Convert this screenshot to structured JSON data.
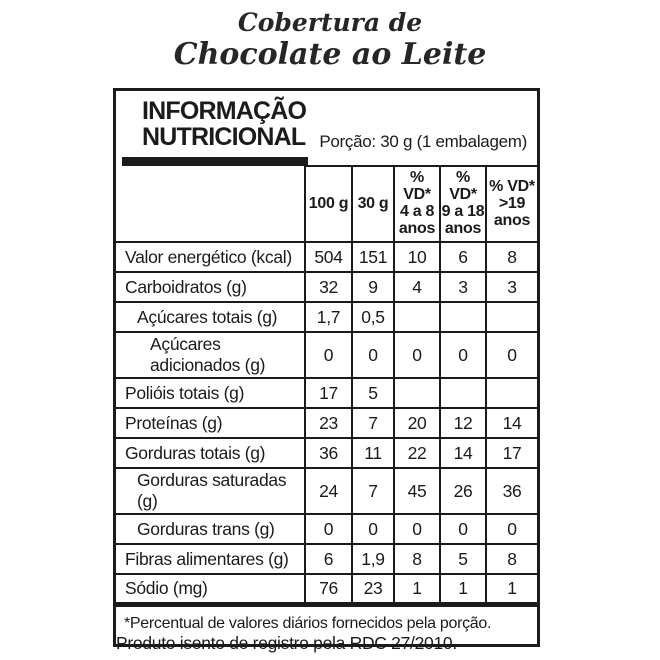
{
  "product": {
    "title_line1": "Cobertura de",
    "title_line2": "Chocolate ao Leite"
  },
  "label": {
    "heading": "INFORMAÇÃO\nNUTRICIONAL",
    "portion": "Porção: 30 g (1 embalagem)",
    "columns": [
      "100 g",
      "30 g",
      "% VD*\n4 a 8\nanos",
      "% VD*\n9 a 18\nanos",
      "% VD*\n>19\nanos"
    ],
    "rows": [
      {
        "label": "Valor energético (kcal)",
        "indent": 0,
        "values": [
          "504",
          "151",
          "10",
          "6",
          "8"
        ]
      },
      {
        "label": "Carboidratos (g)",
        "indent": 0,
        "values": [
          "32",
          "9",
          "4",
          "3",
          "3"
        ]
      },
      {
        "label": "Açúcares totais (g)",
        "indent": 1,
        "values": [
          "1,7",
          "0,5",
          "",
          "",
          ""
        ]
      },
      {
        "label": "Açúcares adicionados (g)",
        "indent": 2,
        "values": [
          "0",
          "0",
          "0",
          "0",
          "0"
        ]
      },
      {
        "label": "Polióis totais (g)",
        "indent": 0,
        "values": [
          "17",
          "5",
          "",
          "",
          ""
        ]
      },
      {
        "label": "Proteínas (g)",
        "indent": 0,
        "values": [
          "23",
          "7",
          "20",
          "12",
          "14"
        ]
      },
      {
        "label": "Gorduras totais (g)",
        "indent": 0,
        "values": [
          "36",
          "11",
          "22",
          "14",
          "17"
        ]
      },
      {
        "label": "Gorduras saturadas (g)",
        "indent": 1,
        "values": [
          "24",
          "7",
          "45",
          "26",
          "36"
        ]
      },
      {
        "label": "Gorduras trans (g)",
        "indent": 1,
        "values": [
          "0",
          "0",
          "0",
          "0",
          "0"
        ]
      },
      {
        "label": "Fibras alimentares (g)",
        "indent": 0,
        "values": [
          "6",
          "1,9",
          "8",
          "5",
          "8"
        ]
      },
      {
        "label": "Sódio (mg)",
        "indent": 0,
        "values": [
          "76",
          "23",
          "1",
          "1",
          "1"
        ]
      }
    ],
    "footnote": "*Percentual de valores diários fornecidos pela porção.",
    "colors": {
      "ink": "#1b1b1b",
      "background": "#ffffff"
    }
  },
  "page_footer": {
    "note": "Produto isento de registro pela RDC 27/2010."
  }
}
